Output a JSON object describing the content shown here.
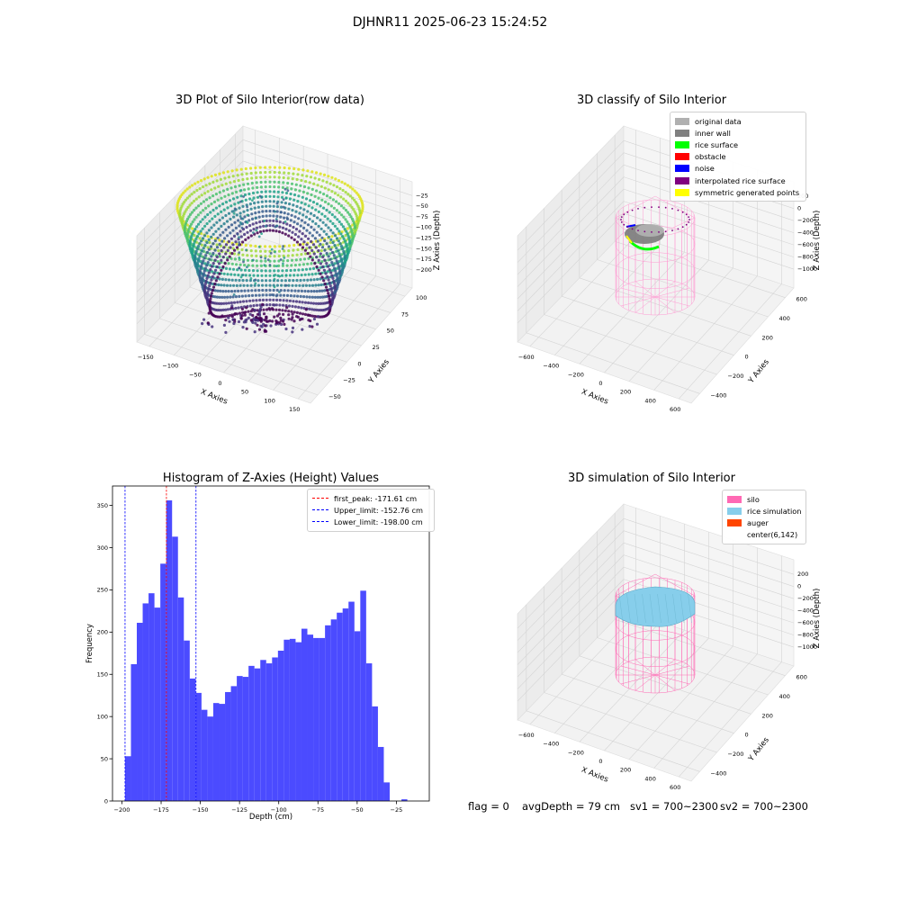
{
  "figure": {
    "suptitle": "DJHNR11 2025-06-23 15:24:52"
  },
  "panels": {
    "raw": {
      "title": "3D Plot of Silo Interior(row data)",
      "xlabel": "X Axies",
      "ylabel": "Y Axies",
      "zlabel": "Z Axies (Depth)",
      "x_ticks": [
        "−150",
        "−100",
        "−50",
        "0",
        "50",
        "100",
        "150"
      ],
      "y_ticks": [
        "−50",
        "−25",
        "0",
        "25",
        "50",
        "75",
        "100"
      ],
      "z_ticks": [
        "−200",
        "−175",
        "−150",
        "−125",
        "−100",
        "−75",
        "−50",
        "−25"
      ]
    },
    "classify": {
      "title": "3D classify of Silo Interior",
      "xlabel": "X Axies",
      "ylabel": "Y Axies",
      "zlabel": "Z Axies (Depth)",
      "x_ticks": [
        "−600",
        "−400",
        "−200",
        "0",
        "200",
        "400",
        "600"
      ],
      "y_ticks": [
        "−400",
        "−200",
        "0",
        "200",
        "400",
        "600"
      ],
      "z_ticks": [
        "−1000",
        "−800",
        "−600",
        "−400",
        "−200",
        "0",
        "200"
      ],
      "legend": [
        {
          "label": "original data",
          "color": "#b0b0b0"
        },
        {
          "label": "inner wall",
          "color": "#808080"
        },
        {
          "label": "rice surface",
          "color": "#00ff00"
        },
        {
          "label": "obstacle",
          "color": "#ff0000"
        },
        {
          "label": "noise",
          "color": "#0000ff"
        },
        {
          "label": "interpolated rice surface",
          "color": "#800080"
        },
        {
          "label": "symmetric generated points",
          "color": "#ffff00"
        }
      ]
    },
    "simulation": {
      "title": "3D simulation of Silo Interior",
      "xlabel": "X Axies",
      "ylabel": "Y Axies",
      "zlabel": "Z Axies (Depth)",
      "x_ticks": [
        "−600",
        "−400",
        "−200",
        "0",
        "200",
        "400",
        "600"
      ],
      "y_ticks": [
        "−400",
        "−200",
        "0",
        "200",
        "400",
        "600"
      ],
      "z_ticks": [
        "−1000",
        "−800",
        "−600",
        "−400",
        "−200",
        "0",
        "200"
      ],
      "legend": [
        {
          "label": "silo",
          "color": "#ff69b4"
        },
        {
          "label": "rice simulation",
          "color": "#87ceeb"
        },
        {
          "label": "auger",
          "color": "#ff4500"
        },
        {
          "label": "center(6,142)",
          "color": "#ffffff"
        }
      ]
    }
  },
  "chart_data": {
    "type": "bar",
    "title": "Histogram of Z-Axies (Height) Values",
    "xlabel": "Depth (cm)",
    "ylabel": "Frequency",
    "xlim": [
      -206,
      -4
    ],
    "ylim": [
      0,
      373
    ],
    "bin_start": -198,
    "bin_width": 3.75,
    "values": [
      53,
      162,
      211,
      234,
      246,
      229,
      281,
      356,
      313,
      241,
      190,
      145,
      128,
      108,
      100,
      116,
      115,
      129,
      136,
      148,
      147,
      160,
      157,
      167,
      163,
      170,
      178,
      191,
      192,
      188,
      204,
      197,
      193,
      193,
      208,
      215,
      223,
      228,
      236,
      201,
      249,
      163,
      112,
      64,
      22,
      0,
      0,
      2
    ],
    "x_ticks": [
      -200,
      -175,
      -150,
      -125,
      -100,
      -75,
      -50,
      -25
    ],
    "x_tick_labels": [
      "−200",
      "−175",
      "−150",
      "−125",
      "−100",
      "−75",
      "−50",
      "−25"
    ],
    "y_ticks": [
      0,
      50,
      100,
      150,
      200,
      250,
      300,
      350
    ],
    "y_tick_labels": [
      "0",
      "50",
      "100",
      "150",
      "200",
      "250",
      "300",
      "350"
    ],
    "bar_color": "#4b4bff",
    "vlines": [
      {
        "label": "first_peak: -171.61 cm",
        "value": -171.61,
        "color": "#ff0000"
      },
      {
        "label": "Upper_limit: -152.76 cm",
        "value": -152.76,
        "color": "#0000ff"
      },
      {
        "label": "Lower_limit: -198.00 cm",
        "value": -198.0,
        "color": "#0000ff"
      }
    ],
    "legend_position": "upper right"
  },
  "status": {
    "flag": "flag = 0",
    "avg_depth": "avgDepth = 79 cm",
    "sv1": "sv1 = 700~2300",
    "sv2": "sv2 = 700~2300"
  }
}
